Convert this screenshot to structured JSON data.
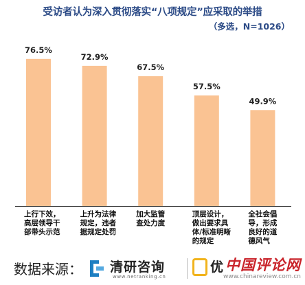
{
  "chart_data": {
    "type": "bar",
    "title": "受访者认为深入贯彻落实“八项规定”应采取的举措",
    "subtitle": "（多选，N=1026）",
    "categories": [
      [
        "上行下效，",
        "高层领导干",
        "部带头示范"
      ],
      [
        "上升为法律",
        "规定，违者",
        "据规定处罚"
      ],
      [
        "加大监管",
        "查处力度"
      ],
      [
        "顶层设计，",
        "做出要求具",
        "体/标准明晰",
        "的规定"
      ],
      [
        "全社会倡",
        "导，形成",
        "良好的道",
        "德风气"
      ]
    ],
    "values": [
      76.5,
      72.9,
      67.5,
      57.5,
      49.9
    ],
    "value_labels": [
      "76.5%",
      "72.9%",
      "67.5%",
      "57.5%",
      "49.9%"
    ],
    "ylim": [
      0,
      100
    ],
    "bar_color": "#fac393",
    "grid": false
  },
  "footer": {
    "source_label": "数据来源：",
    "logo1_name": "清研咨询",
    "logo1_url": "www.netranking.cn",
    "logo2_name": "优"
  },
  "watermark": {
    "text": "中国评论网",
    "url": "www.chinareview.com.cn"
  },
  "colors": {
    "title": "#2b4a86",
    "watermark": "#c9242b",
    "accent_logo": "#1d7fc2",
    "logo2": "#f1b31c"
  }
}
